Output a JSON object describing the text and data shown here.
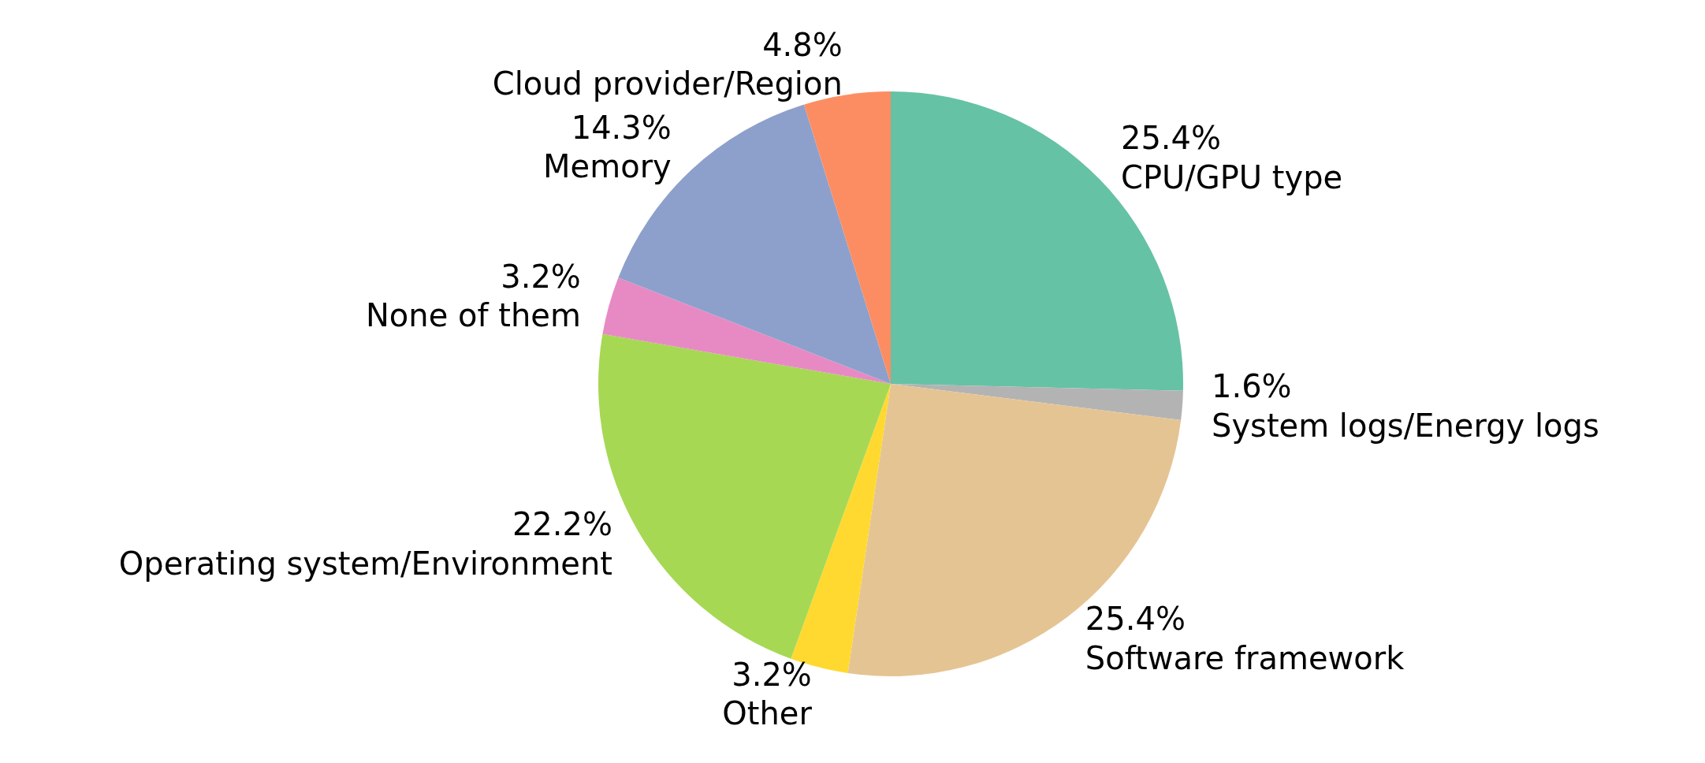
{
  "chart_data": {
    "type": "pie",
    "categories": [
      "CPU/GPU type",
      "System logs/Energy logs",
      "Software framework",
      "Other",
      "Operating system/Environment",
      "None of them",
      "Memory",
      "Cloud provider/Region"
    ],
    "values": [
      25.4,
      1.6,
      25.4,
      3.2,
      22.2,
      3.2,
      14.3,
      4.8
    ],
    "value_labels": [
      "25.4%",
      "1.6%",
      "25.4%",
      "3.2%",
      "22.2%",
      "3.2%",
      "14.3%",
      "4.8%"
    ],
    "colors": [
      "#66c2a5",
      "#b3b3b3",
      "#e5c494",
      "#ffd92f",
      "#a6d854",
      "#e78ac3",
      "#8da0cb",
      "#fc8d62"
    ]
  }
}
